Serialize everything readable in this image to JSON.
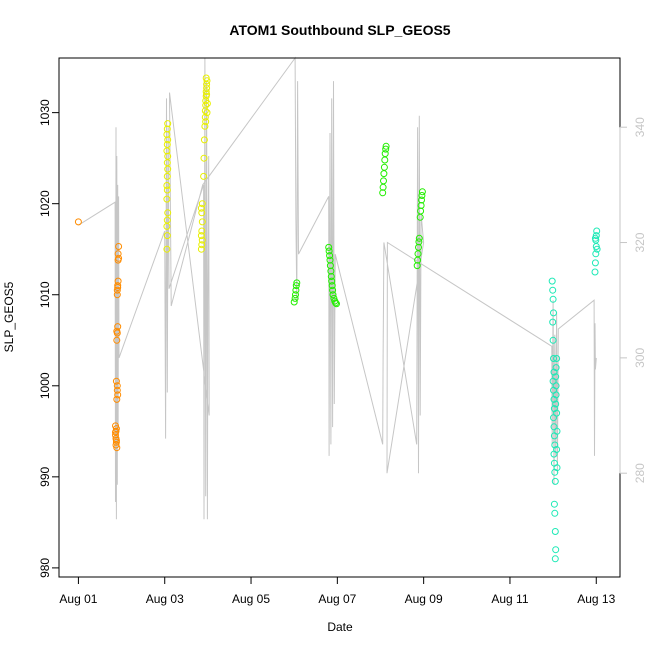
{
  "chart_data": {
    "type": "scatter",
    "title": "ATOM1 Southbound SLP_GEOS5",
    "xlabel": "Date",
    "ylabel": "SLP_GEOS5",
    "y2label": "",
    "x_unit": "days (Aug 2016-style calendar, day-of-August)",
    "xlim": [
      0.55,
      13.55
    ],
    "ylim": [
      979,
      1036
    ],
    "y2lim": [
      262,
      352
    ],
    "x_ticks": [
      {
        "value": 1,
        "label": "Aug 01"
      },
      {
        "value": 3,
        "label": "Aug 03"
      },
      {
        "value": 5,
        "label": "Aug 05"
      },
      {
        "value": 7,
        "label": "Aug 07"
      },
      {
        "value": 9,
        "label": "Aug 09"
      },
      {
        "value": 11,
        "label": "Aug 11"
      },
      {
        "value": 13,
        "label": "Aug 13"
      }
    ],
    "y_ticks": [
      {
        "value": 980,
        "label": "980"
      },
      {
        "value": 990,
        "label": "990"
      },
      {
        "value": 1000,
        "label": "1000"
      },
      {
        "value": 1010,
        "label": "1010"
      },
      {
        "value": 1020,
        "label": "1020"
      },
      {
        "value": 1030,
        "label": "1030"
      }
    ],
    "y2_ticks": [
      {
        "value": 280,
        "label": "280"
      },
      {
        "value": 300,
        "label": "300"
      },
      {
        "value": 320,
        "label": "320"
      },
      {
        "value": 340,
        "label": "340"
      }
    ],
    "grid": false,
    "legend": "none",
    "point_style": "open circle",
    "series": [
      {
        "color": "#ff8c00",
        "points": [
          [
            1.0,
            1018.0
          ],
          [
            1.87,
            995.0
          ],
          [
            1.86,
            994.6
          ],
          [
            1.88,
            995.3
          ],
          [
            1.87,
            994.2
          ],
          [
            1.86,
            995.6
          ],
          [
            1.88,
            993.8
          ],
          [
            1.87,
            993.5
          ],
          [
            1.89,
            993.2
          ],
          [
            1.86,
            994.9
          ],
          [
            1.88,
            994.0
          ],
          [
            1.89,
            998.5
          ],
          [
            1.9,
            999.5
          ],
          [
            1.88,
            1000.5
          ],
          [
            1.9,
            1000.0
          ],
          [
            1.91,
            999.0
          ],
          [
            1.89,
            1005.0
          ],
          [
            1.9,
            1005.8
          ],
          [
            1.91,
            1006.5
          ],
          [
            1.89,
            1006.0
          ],
          [
            1.9,
            1010.0
          ],
          [
            1.91,
            1010.8
          ],
          [
            1.92,
            1011.5
          ],
          [
            1.9,
            1010.5
          ],
          [
            1.91,
            1011.0
          ],
          [
            1.92,
            1013.8
          ],
          [
            1.93,
            1014.0
          ],
          [
            1.92,
            1014.5
          ],
          [
            1.93,
            1015.3
          ]
        ]
      },
      {
        "color": "#e8ef00",
        "points": [
          [
            3.05,
            1015.0
          ],
          [
            3.06,
            1016.5
          ],
          [
            3.05,
            1017.5
          ],
          [
            3.06,
            1018.2
          ],
          [
            3.07,
            1019.0
          ],
          [
            3.05,
            1020.5
          ],
          [
            3.06,
            1021.5
          ],
          [
            3.05,
            1022.0
          ],
          [
            3.06,
            1023.0
          ],
          [
            3.07,
            1023.8
          ],
          [
            3.06,
            1024.5
          ],
          [
            3.07,
            1025.2
          ],
          [
            3.05,
            1025.8
          ],
          [
            3.06,
            1026.5
          ],
          [
            3.07,
            1027.0
          ],
          [
            3.05,
            1027.6
          ],
          [
            3.06,
            1028.2
          ],
          [
            3.07,
            1028.8
          ],
          [
            3.85,
            1015.0
          ],
          [
            3.86,
            1015.5
          ],
          [
            3.87,
            1016.0
          ],
          [
            3.85,
            1016.5
          ],
          [
            3.86,
            1017.0
          ],
          [
            3.87,
            1018.0
          ],
          [
            3.86,
            1019.0
          ],
          [
            3.85,
            1019.5
          ],
          [
            3.87,
            1020.0
          ],
          [
            3.9,
            1023.0
          ],
          [
            3.91,
            1025.0
          ],
          [
            3.92,
            1027.0
          ],
          [
            3.93,
            1028.5
          ],
          [
            3.94,
            1029.5
          ],
          [
            3.94,
            1030.2
          ],
          [
            3.95,
            1030.8
          ],
          [
            3.95,
            1031.3
          ],
          [
            3.96,
            1031.8
          ],
          [
            3.96,
            1032.3
          ],
          [
            3.97,
            1032.7
          ],
          [
            3.97,
            1033.1
          ],
          [
            3.98,
            1033.5
          ],
          [
            3.96,
            1033.8
          ],
          [
            3.98,
            1030.0
          ],
          [
            3.99,
            1031.0
          ],
          [
            3.97,
            1032.0
          ],
          [
            3.95,
            1029.0
          ]
        ]
      },
      {
        "color": "#22ee00",
        "points": [
          [
            6.0,
            1009.2
          ],
          [
            6.02,
            1009.6
          ],
          [
            6.03,
            1010.0
          ],
          [
            6.04,
            1010.5
          ],
          [
            6.05,
            1011.0
          ],
          [
            6.06,
            1011.3
          ],
          [
            6.8,
            1015.2
          ],
          [
            6.81,
            1014.8
          ],
          [
            6.82,
            1014.3
          ],
          [
            6.83,
            1013.8
          ],
          [
            6.84,
            1013.2
          ],
          [
            6.85,
            1012.6
          ],
          [
            6.86,
            1012.0
          ],
          [
            6.87,
            1011.5
          ],
          [
            6.88,
            1011.0
          ],
          [
            6.89,
            1010.5
          ],
          [
            6.9,
            1010.0
          ],
          [
            6.92,
            1009.6
          ],
          [
            6.94,
            1009.3
          ],
          [
            6.96,
            1009.1
          ],
          [
            6.98,
            1009.0
          ],
          [
            8.05,
            1021.2
          ],
          [
            8.06,
            1021.8
          ],
          [
            8.07,
            1022.5
          ],
          [
            8.08,
            1023.3
          ],
          [
            8.09,
            1024.0
          ],
          [
            8.1,
            1024.8
          ],
          [
            8.11,
            1025.5
          ],
          [
            8.12,
            1026.0
          ],
          [
            8.13,
            1026.3
          ],
          [
            8.85,
            1013.2
          ],
          [
            8.86,
            1013.8
          ],
          [
            8.87,
            1014.5
          ],
          [
            8.88,
            1015.2
          ],
          [
            8.89,
            1015.8
          ],
          [
            8.9,
            1016.2
          ],
          [
            8.92,
            1018.5
          ],
          [
            8.93,
            1019.2
          ],
          [
            8.94,
            1019.8
          ],
          [
            8.95,
            1020.4
          ],
          [
            8.96,
            1020.9
          ],
          [
            8.97,
            1021.3
          ]
        ]
      },
      {
        "color": "#1de9b6",
        "points": [
          [
            11.98,
            1011.5
          ],
          [
            11.99,
            1010.5
          ],
          [
            12.0,
            1009.5
          ],
          [
            12.01,
            1008.0
          ],
          [
            11.99,
            1007.0
          ],
          [
            12.0,
            1005.0
          ],
          [
            12.01,
            1003.0
          ],
          [
            12.02,
            1001.5
          ],
          [
            12.0,
            1000.5
          ],
          [
            12.01,
            999.5
          ],
          [
            12.02,
            998.5
          ],
          [
            12.03,
            997.5
          ],
          [
            12.01,
            996.5
          ],
          [
            12.02,
            995.5
          ],
          [
            12.03,
            994.5
          ],
          [
            12.04,
            993.5
          ],
          [
            12.02,
            992.5
          ],
          [
            12.03,
            991.5
          ],
          [
            12.04,
            990.5
          ],
          [
            12.05,
            989.5
          ],
          [
            12.03,
            987.0
          ],
          [
            12.04,
            986.0
          ],
          [
            12.05,
            984.0
          ],
          [
            12.06,
            982.0
          ],
          [
            12.05,
            981.0
          ],
          [
            12.06,
            1001.0
          ],
          [
            12.07,
            1002.0
          ],
          [
            12.08,
            1003.0
          ],
          [
            12.07,
            999.0
          ],
          [
            12.08,
            997.0
          ],
          [
            12.09,
            995.0
          ],
          [
            12.08,
            993.0
          ],
          [
            12.09,
            991.0
          ],
          [
            12.07,
            1000.0
          ],
          [
            12.06,
            998.0
          ],
          [
            12.97,
            1012.5
          ],
          [
            12.98,
            1013.5
          ],
          [
            12.99,
            1014.5
          ],
          [
            13.0,
            1015.3
          ],
          [
            12.99,
            1016.0
          ],
          [
            13.0,
            1016.5
          ],
          [
            13.01,
            1017.0
          ],
          [
            12.98,
            1016.2
          ],
          [
            13.02,
            1015.0
          ]
        ]
      }
    ],
    "trace_color": "#c6c6c6",
    "trace_axis": "right",
    "trace": [
      [
        1.0,
        323
      ],
      [
        1.85,
        327
      ],
      [
        1.86,
        275
      ],
      [
        1.87,
        340
      ],
      [
        1.88,
        272
      ],
      [
        1.89,
        335
      ],
      [
        1.9,
        278
      ],
      [
        1.91,
        330
      ],
      [
        1.92,
        285
      ],
      [
        1.93,
        328
      ],
      [
        1.94,
        300
      ],
      [
        3.0,
        322
      ],
      [
        3.02,
        286
      ],
      [
        3.04,
        345
      ],
      [
        3.06,
        294
      ],
      [
        3.08,
        340
      ],
      [
        3.1,
        312
      ],
      [
        3.9,
        330
      ],
      [
        3.91,
        272
      ],
      [
        3.93,
        352
      ],
      [
        3.95,
        276
      ],
      [
        3.97,
        348
      ],
      [
        3.99,
        272
      ],
      [
        4.0,
        310
      ],
      [
        4.02,
        335
      ],
      [
        4.03,
        290
      ],
      [
        3.11,
        346
      ],
      [
        3.15,
        309
      ],
      [
        3.88,
        330
      ],
      [
        6.02,
        352
      ],
      [
        6.04,
        324
      ],
      [
        6.06,
        310
      ],
      [
        6.08,
        348
      ],
      [
        6.1,
        318
      ],
      [
        6.8,
        328
      ],
      [
        6.81,
        283
      ],
      [
        6.83,
        339
      ],
      [
        6.85,
        285
      ],
      [
        6.87,
        345
      ],
      [
        6.89,
        288
      ],
      [
        6.91,
        348
      ],
      [
        6.93,
        292
      ],
      [
        6.95,
        318
      ],
      [
        8.05,
        285
      ],
      [
        8.06,
        300
      ],
      [
        8.07,
        310
      ],
      [
        8.08,
        320
      ],
      [
        8.84,
        285
      ],
      [
        8.86,
        340
      ],
      [
        8.88,
        280
      ],
      [
        8.9,
        342
      ],
      [
        8.92,
        290
      ],
      [
        8.94,
        325
      ],
      [
        9.0,
        320
      ],
      [
        8.15,
        280
      ],
      [
        8.16,
        320
      ],
      [
        11.97,
        302
      ],
      [
        11.98,
        285
      ],
      [
        12.0,
        310
      ],
      [
        12.02,
        278
      ],
      [
        12.04,
        304
      ],
      [
        12.06,
        283
      ],
      [
        12.08,
        308
      ],
      [
        12.1,
        280
      ],
      [
        12.12,
        305
      ],
      [
        12.95,
        310
      ],
      [
        12.96,
        283
      ],
      [
        12.97,
        306
      ],
      [
        12.98,
        298
      ],
      [
        13.0,
        300
      ]
    ]
  }
}
